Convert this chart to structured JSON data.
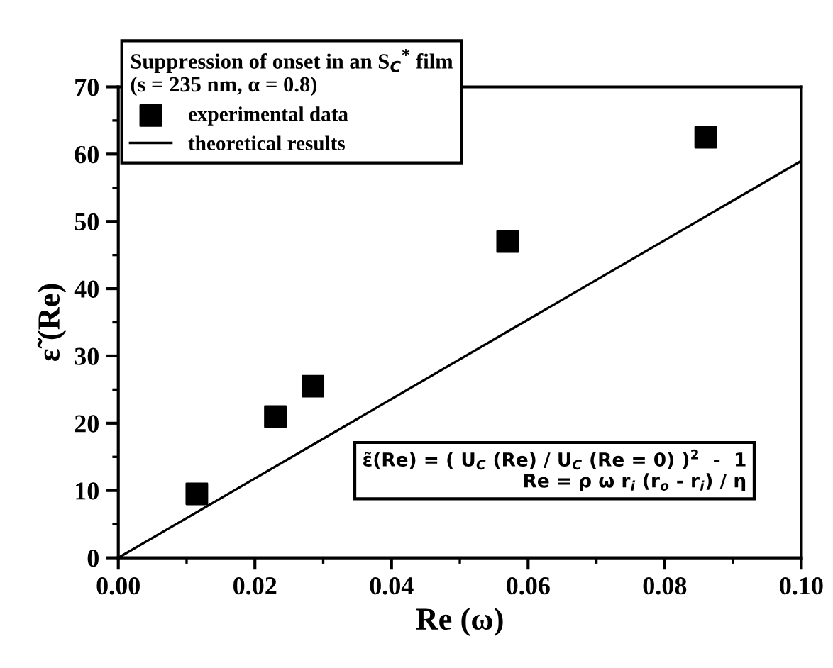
{
  "chart_data": {
    "type": "scatter",
    "xlabel": "Re (ω)",
    "ylabel": "ε̃ (Re)",
    "legend_title": "Suppression of onset in an S$_{C}$$^{*}$ film\n(s = 235 nm, α = 0.8)",
    "xlim": [
      0,
      0.1
    ],
    "ylim": [
      0,
      70
    ],
    "xticks": [
      {
        "value": 0,
        "label": "0.00"
      },
      {
        "value": 0.02,
        "label": "0.02"
      },
      {
        "value": 0.04,
        "label": "0.04"
      },
      {
        "value": 0.06,
        "label": "0.06"
      },
      {
        "value": 0.08,
        "label": "0.08"
      },
      {
        "value": 0.1,
        "label": "0.10"
      }
    ],
    "yticks": [
      0,
      10,
      20,
      30,
      40,
      50,
      60,
      70
    ],
    "series": [
      {
        "name": "experimental data",
        "marker": "square",
        "color": "#000000",
        "x": [
          0.0115,
          0.023,
          0.0285,
          0.057,
          0.086
        ],
        "values": [
          9.5,
          21,
          25.5,
          47,
          62.5
        ]
      },
      {
        "name": "theoretical results",
        "type": "line",
        "marker": "none",
        "line_style": "solid",
        "color": "#000000",
        "x": [
          0,
          0.1
        ],
        "values": [
          0,
          59
        ]
      }
    ],
    "annotations": [
      "ε̃(Re) = ( U$_{C}$ (Re) / U$_{C}$ (Re = 0) )$^{2}$  -  1\nRe = ρ ω r$_{i}$ (r$_{o}$ - r$_{i}$) / η"
    ],
    "legend": "top left",
    "grid": false
  }
}
